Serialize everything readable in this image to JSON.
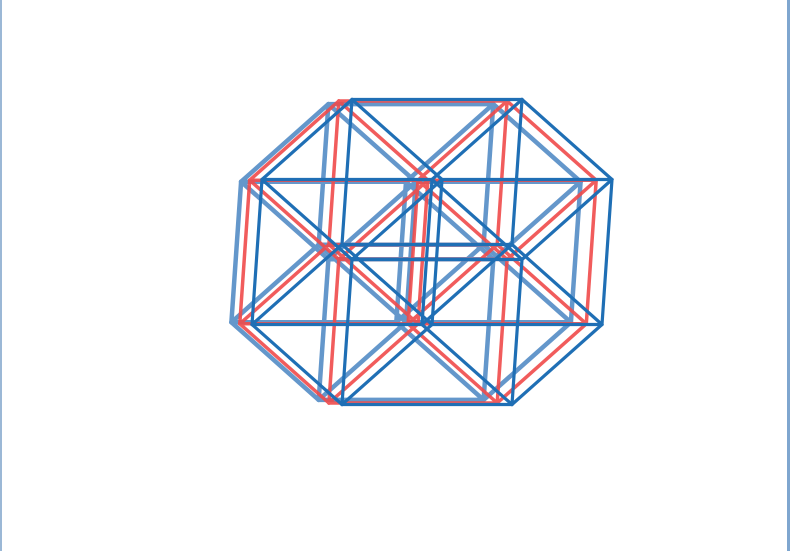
{
  "figure": {
    "subject": "tesseract-wireframe",
    "layers": [
      {
        "name": "blue-back",
        "color": "#4a86c3",
        "opacity": 0.85
      },
      {
        "name": "red-middle",
        "color": "#f04b4b",
        "opacity": 0.9
      },
      {
        "name": "blue-front",
        "color": "#1f6fb5",
        "opacity": 1.0
      }
    ]
  }
}
